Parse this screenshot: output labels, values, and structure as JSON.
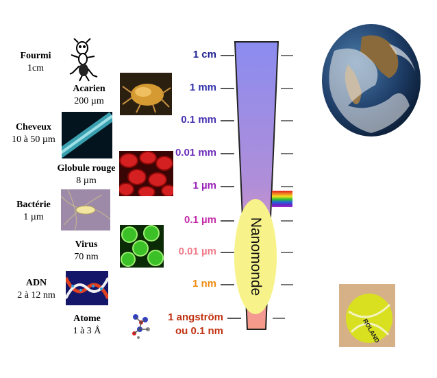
{
  "organisms": [
    {
      "name": "Fourmi",
      "size": "1cm"
    },
    {
      "name": "Acarien",
      "size": "200 µm"
    },
    {
      "name": "Cheveux",
      "size": "10 à 50 µm"
    },
    {
      "name": "Globule rouge",
      "size": "8 µm"
    },
    {
      "name": "Bactérie",
      "size": "1 µm"
    },
    {
      "name": "Virus",
      "size": "70 nm"
    },
    {
      "name": "ADN",
      "size": "2 à 12 nm"
    },
    {
      "name": "Atome",
      "size": "1 à 3 Å"
    }
  ],
  "scale_labels": [
    {
      "text": "1 cm",
      "color": "#1d1d8f"
    },
    {
      "text": "1 mm",
      "color": "#3030a8"
    },
    {
      "text": "0.1 mm",
      "color": "#4330b0"
    },
    {
      "text": "0.01 mm",
      "color": "#6a2ab8"
    },
    {
      "text": "1 µm",
      "color": "#9a20b8"
    },
    {
      "text": "0.1 µm",
      "color": "#c42aa8"
    },
    {
      "text": "0.01 µm",
      "color": "#f07a88"
    },
    {
      "text": "1 nm",
      "color": "#f08a10"
    },
    {
      "text": "1 angström",
      "color": "#c03010"
    },
    {
      "text": "ou 0.1 nm",
      "color": "#c03010"
    }
  ],
  "nanomonde_label": "Nanomonde",
  "colors": {
    "bar_top": "#8a8cf0",
    "bar_bottom": "#f49a8a",
    "ellipse": "#f7f38a"
  },
  "icons": [
    "ant-icon",
    "mite-image",
    "hair-image",
    "red-blood-cells-image",
    "bacteria-image",
    "virus-image",
    "dna-image",
    "atom-icon",
    "rainbow-spectrum",
    "earth-image",
    "tennis-ball-image"
  ]
}
